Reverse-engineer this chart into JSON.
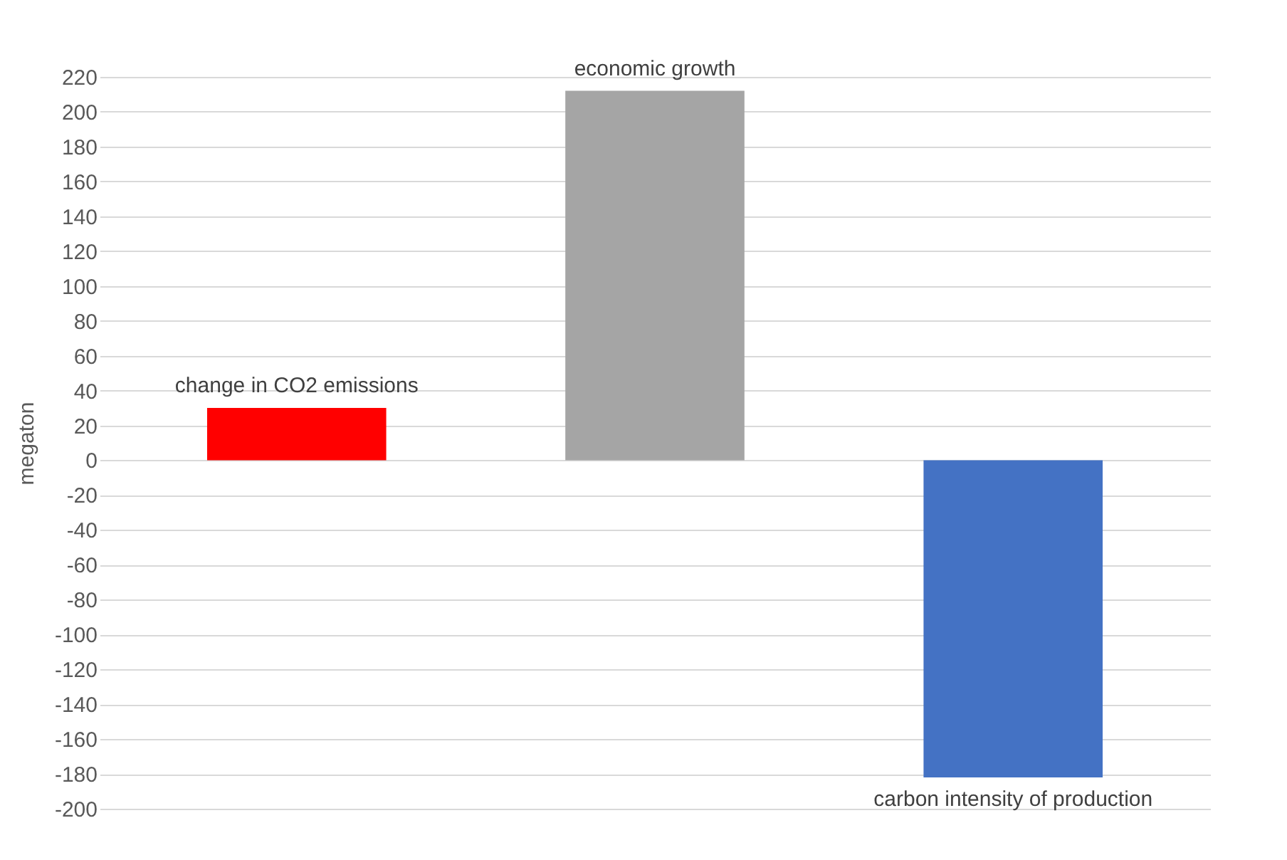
{
  "chart_data": {
    "type": "bar",
    "ylabel": "megaton",
    "categories": [
      "change in CO2 emissions",
      "economic growth",
      "carbon intensity of production"
    ],
    "values": [
      30,
      212,
      -182
    ],
    "colors": [
      "#ff0000",
      "#a5a5a5",
      "#4472c4"
    ],
    "ylim": [
      -200,
      220
    ],
    "yticks": [
      -200,
      -180,
      -160,
      -140,
      -120,
      -100,
      -80,
      -60,
      -40,
      -20,
      0,
      20,
      40,
      60,
      80,
      100,
      120,
      140,
      160,
      180,
      200,
      220
    ],
    "grid": "y",
    "tick_labels": "y"
  }
}
